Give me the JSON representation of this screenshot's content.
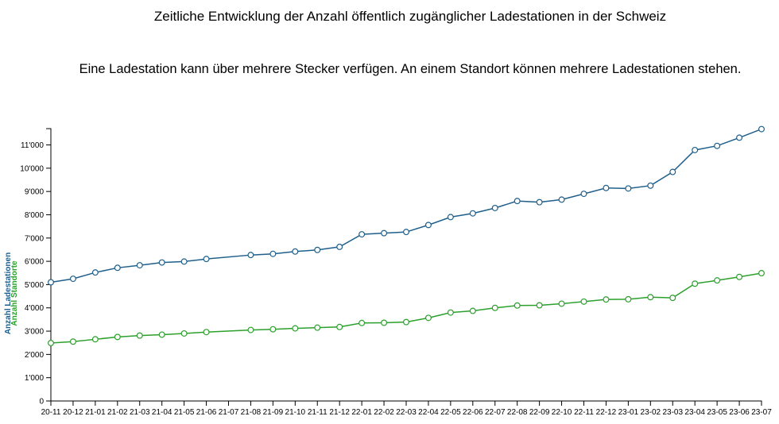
{
  "chart_data": {
    "type": "line",
    "title": "Zeitliche Entwicklung der Anzahl öffentlich zugänglicher Ladestationen in der Schweiz",
    "subtitle": "Eine Ladestation kann über mehrere Stecker verfügen. An einem Standort können mehrere Ladestationen stehen.",
    "ylabels": [
      {
        "text": "Anzahl Ladestationen",
        "color": "#1f5f8b"
      },
      {
        "text": "Anzahl Standorte",
        "color": "#2ca02c"
      }
    ],
    "ylim": [
      0,
      11700
    ],
    "yticks": [
      {
        "value": 0,
        "label": "0"
      },
      {
        "value": 1000,
        "label": "1'000"
      },
      {
        "value": 2000,
        "label": "2'000"
      },
      {
        "value": 3000,
        "label": "3'000"
      },
      {
        "value": 4000,
        "label": "4'000"
      },
      {
        "value": 5000,
        "label": "5'000"
      },
      {
        "value": 6000,
        "label": "6'000"
      },
      {
        "value": 7000,
        "label": "7'000"
      },
      {
        "value": 8000,
        "label": "8'000"
      },
      {
        "value": 9000,
        "label": "9'000"
      },
      {
        "value": 10000,
        "label": "10'000"
      },
      {
        "value": 11000,
        "label": "11'000"
      }
    ],
    "x": [
      "20-11",
      "20-12",
      "21-01",
      "21-02",
      "21-03",
      "21-04",
      "21-05",
      "21-06",
      "21-07",
      "21-08",
      "21-09",
      "21-10",
      "21-11",
      "21-12",
      "22-01",
      "22-02",
      "22-03",
      "22-04",
      "22-05",
      "22-06",
      "22-07",
      "22-08",
      "22-09",
      "22-10",
      "22-11",
      "22-12",
      "23-01",
      "23-02",
      "23-03",
      "23-04",
      "23-05",
      "23-06",
      "23-07"
    ],
    "series": [
      {
        "color": "#1f5f8b",
        "points": [
          [
            "20-11",
            5100
          ],
          [
            "20-12",
            5250
          ],
          [
            "21-01",
            5520
          ],
          [
            "21-02",
            5720
          ],
          [
            "21-03",
            5830
          ],
          [
            "21-04",
            5950
          ],
          [
            "21-05",
            5990
          ],
          [
            "21-06",
            6100
          ],
          [
            "21-08",
            6270
          ],
          [
            "21-09",
            6320
          ],
          [
            "21-10",
            6420
          ],
          [
            "21-11",
            6490
          ],
          [
            "21-12",
            6620
          ],
          [
            "22-01",
            7160
          ],
          [
            "22-02",
            7210
          ],
          [
            "22-03",
            7260
          ],
          [
            "22-04",
            7560
          ],
          [
            "22-05",
            7900
          ],
          [
            "22-06",
            8060
          ],
          [
            "22-07",
            8290
          ],
          [
            "22-08",
            8590
          ],
          [
            "22-09",
            8540
          ],
          [
            "22-10",
            8650
          ],
          [
            "22-11",
            8900
          ],
          [
            "22-12",
            9150
          ],
          [
            "23-01",
            9130
          ],
          [
            "23-02",
            9250
          ],
          [
            "23-03",
            9840
          ],
          [
            "23-04",
            10780
          ],
          [
            "23-05",
            10960
          ],
          [
            "23-06",
            11310
          ],
          [
            "23-07",
            11680
          ]
        ]
      },
      {
        "color": "#2ca02c",
        "points": [
          [
            "20-11",
            2490
          ],
          [
            "20-12",
            2550
          ],
          [
            "21-01",
            2650
          ],
          [
            "21-02",
            2750
          ],
          [
            "21-03",
            2810
          ],
          [
            "21-04",
            2850
          ],
          [
            "21-05",
            2900
          ],
          [
            "21-06",
            2960
          ],
          [
            "21-08",
            3050
          ],
          [
            "21-09",
            3080
          ],
          [
            "21-10",
            3120
          ],
          [
            "21-11",
            3150
          ],
          [
            "21-12",
            3180
          ],
          [
            "22-01",
            3350
          ],
          [
            "22-02",
            3360
          ],
          [
            "22-03",
            3390
          ],
          [
            "22-04",
            3570
          ],
          [
            "22-05",
            3800
          ],
          [
            "22-06",
            3870
          ],
          [
            "22-07",
            4000
          ],
          [
            "22-08",
            4100
          ],
          [
            "22-09",
            4110
          ],
          [
            "22-10",
            4180
          ],
          [
            "22-11",
            4270
          ],
          [
            "22-12",
            4360
          ],
          [
            "23-01",
            4370
          ],
          [
            "23-02",
            4460
          ],
          [
            "23-03",
            4430
          ],
          [
            "23-04",
            5040
          ],
          [
            "23-05",
            5180
          ],
          [
            "23-06",
            5330
          ],
          [
            "23-07",
            5490
          ]
        ]
      }
    ]
  }
}
